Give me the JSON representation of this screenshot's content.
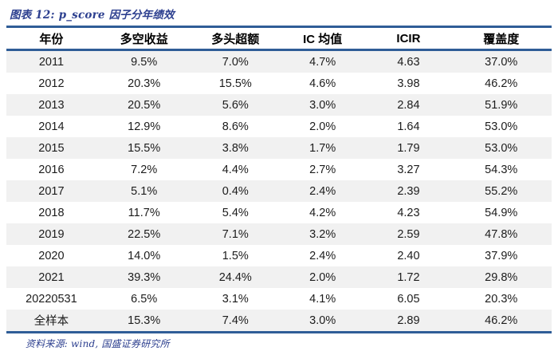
{
  "title": {
    "label": "图表 12: p_score 因子分年绩效"
  },
  "table": {
    "columns": [
      "年份",
      "多空收益",
      "多头超额",
      "IC 均值",
      "ICIR",
      "覆盖度"
    ],
    "rows": [
      [
        "2011",
        "9.5%",
        "7.0%",
        "4.7%",
        "4.63",
        "37.0%"
      ],
      [
        "2012",
        "20.3%",
        "15.5%",
        "4.6%",
        "3.98",
        "46.2%"
      ],
      [
        "2013",
        "20.5%",
        "5.6%",
        "3.0%",
        "2.84",
        "51.9%"
      ],
      [
        "2014",
        "12.9%",
        "8.6%",
        "2.0%",
        "1.64",
        "53.0%"
      ],
      [
        "2015",
        "15.5%",
        "3.8%",
        "1.7%",
        "1.79",
        "53.0%"
      ],
      [
        "2016",
        "7.2%",
        "4.4%",
        "2.7%",
        "3.27",
        "54.3%"
      ],
      [
        "2017",
        "5.1%",
        "0.4%",
        "2.4%",
        "2.39",
        "55.2%"
      ],
      [
        "2018",
        "11.7%",
        "5.4%",
        "4.2%",
        "4.23",
        "54.9%"
      ],
      [
        "2019",
        "22.5%",
        "7.1%",
        "3.2%",
        "2.59",
        "47.8%"
      ],
      [
        "2020",
        "14.0%",
        "1.5%",
        "2.4%",
        "2.40",
        "37.9%"
      ],
      [
        "2021",
        "39.3%",
        "24.4%",
        "2.0%",
        "1.72",
        "29.8%"
      ],
      [
        "20220531",
        "6.5%",
        "3.1%",
        "4.1%",
        "6.05",
        "20.3%"
      ],
      [
        "全样本",
        "15.3%",
        "7.4%",
        "3.0%",
        "2.89",
        "46.2%"
      ]
    ]
  },
  "footer": {
    "label": "资料来源: wind, 国盛证券研究所"
  },
  "colors": {
    "caption_text": "#2c3f8f",
    "rule_line": "#2f5d97",
    "row_stripe": "#f1f1f1",
    "body_text": "#1c1c1c"
  }
}
